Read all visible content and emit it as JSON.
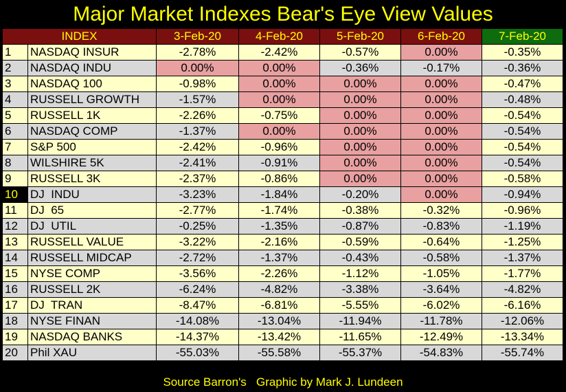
{
  "chart_data": {
    "type": "table",
    "title": "Major Market Indexes Bear's Eye View Values",
    "footer": "Source Barron's   Graphic by Mark J. Lundeen",
    "columns": [
      "INDEX",
      "3-Feb-20",
      "4-Feb-20",
      "5-Feb-20",
      "6-Feb-20",
      "7-Feb-20"
    ],
    "rows": [
      {
        "rank": "1",
        "index": "NASDAQ INSUR",
        "values": [
          "-2.78%",
          "-2.42%",
          "-0.57%",
          "0.00%",
          "-0.35%"
        ]
      },
      {
        "rank": "2",
        "index": "NASDAQ INDU",
        "values": [
          "0.00%",
          "0.00%",
          "-0.36%",
          "-0.17%",
          "-0.36%"
        ]
      },
      {
        "rank": "3",
        "index": "NASDAQ 100",
        "values": [
          "-0.98%",
          "0.00%",
          "0.00%",
          "0.00%",
          "-0.47%"
        ]
      },
      {
        "rank": "4",
        "index": "RUSSELL GROWTH",
        "values": [
          "-1.57%",
          "0.00%",
          "0.00%",
          "0.00%",
          "-0.48%"
        ]
      },
      {
        "rank": "5",
        "index": "RUSSELL 1K",
        "values": [
          "-2.26%",
          "-0.75%",
          "0.00%",
          "0.00%",
          "-0.54%"
        ]
      },
      {
        "rank": "6",
        "index": "NASDAQ COMP",
        "values": [
          "-1.37%",
          "0.00%",
          "0.00%",
          "0.00%",
          "-0.54%"
        ]
      },
      {
        "rank": "7",
        "index": "S&P 500",
        "values": [
          "-2.42%",
          "-0.96%",
          "0.00%",
          "0.00%",
          "-0.54%"
        ]
      },
      {
        "rank": "8",
        "index": "WILSHIRE 5K",
        "values": [
          "-2.41%",
          "-0.91%",
          "0.00%",
          "0.00%",
          "-0.54%"
        ]
      },
      {
        "rank": "9",
        "index": "RUSSELL 3K",
        "values": [
          "-2.37%",
          "-0.86%",
          "0.00%",
          "0.00%",
          "-0.58%"
        ]
      },
      {
        "rank": "10",
        "index": "DJ  INDU",
        "values": [
          "-3.23%",
          "-1.84%",
          "-0.20%",
          "0.00%",
          "-0.94%"
        ]
      },
      {
        "rank": "11",
        "index": "DJ  65",
        "values": [
          "-2.77%",
          "-1.74%",
          "-0.38%",
          "-0.32%",
          "-0.96%"
        ]
      },
      {
        "rank": "12",
        "index": "DJ  UTIL",
        "values": [
          "-0.25%",
          "-1.35%",
          "-0.87%",
          "-0.83%",
          "-1.19%"
        ]
      },
      {
        "rank": "13",
        "index": "RUSSELL VALUE",
        "values": [
          "-3.22%",
          "-2.16%",
          "-0.59%",
          "-0.64%",
          "-1.25%"
        ]
      },
      {
        "rank": "14",
        "index": "RUSSELL MIDCAP",
        "values": [
          "-2.72%",
          "-1.37%",
          "-0.43%",
          "-0.58%",
          "-1.37%"
        ]
      },
      {
        "rank": "15",
        "index": "NYSE COMP",
        "values": [
          "-3.56%",
          "-2.26%",
          "-1.12%",
          "-1.05%",
          "-1.77%"
        ]
      },
      {
        "rank": "16",
        "index": "RUSSELL 2K",
        "values": [
          "-6.24%",
          "-4.82%",
          "-3.38%",
          "-3.64%",
          "-4.82%"
        ]
      },
      {
        "rank": "17",
        "index": "DJ  TRAN",
        "values": [
          "-8.47%",
          "-6.81%",
          "-5.55%",
          "-6.02%",
          "-6.16%"
        ]
      },
      {
        "rank": "18",
        "index": "NYSE FINAN",
        "values": [
          "-14.08%",
          "-13.04%",
          "-11.94%",
          "-11.78%",
          "-12.06%"
        ]
      },
      {
        "rank": "19",
        "index": "NASDAQ BANKS",
        "values": [
          "-14.37%",
          "-13.42%",
          "-11.65%",
          "-12.49%",
          "-13.34%"
        ]
      },
      {
        "rank": "20",
        "index": "Phil XAU",
        "values": [
          "-55.03%",
          "-55.58%",
          "-55.37%",
          "-54.83%",
          "-55.74%"
        ]
      }
    ],
    "highlight_value": "0.00%",
    "highlighted_rank_label": "10"
  },
  "colors": {
    "title": "#ffff00",
    "header_bg": "#7a0f0f",
    "header_last_bg": "#0e6b0e",
    "row_odd": "#ffffc8",
    "row_even": "#d8d8d8",
    "highlight": "#e8a0a0"
  }
}
